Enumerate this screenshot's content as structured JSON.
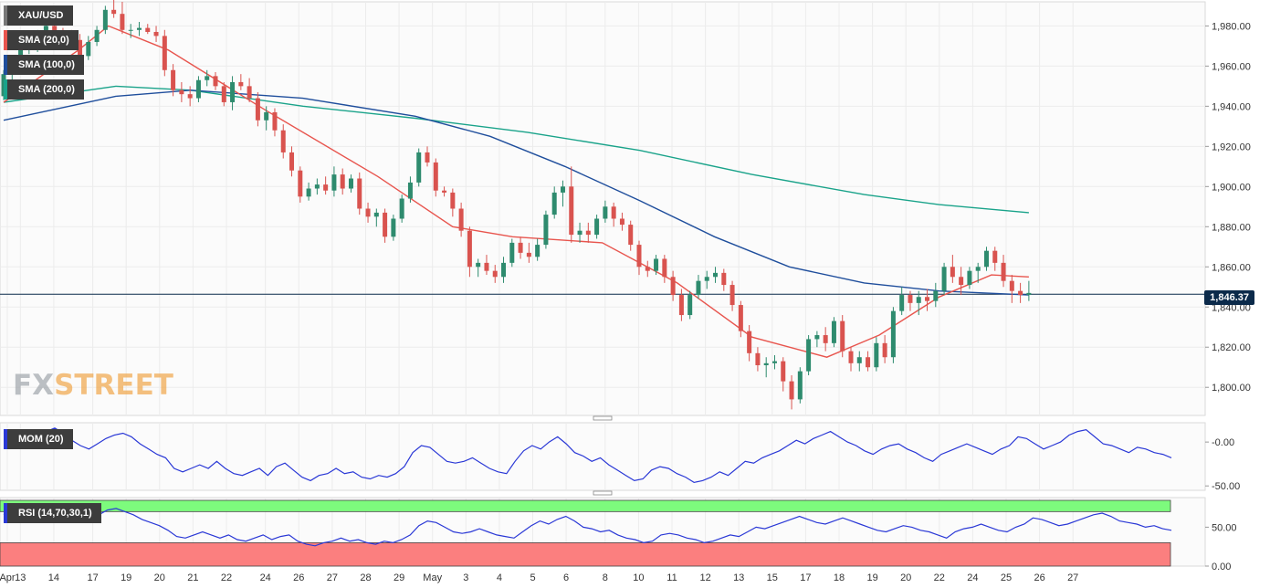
{
  "instrument": "XAU/USD",
  "legend": {
    "sma20": "SMA (20,0)",
    "sma100": "SMA (100,0)",
    "sma200": "SMA (200,0)",
    "mom": "MOM (20)",
    "rsi": "RSI (14,70,30,1)"
  },
  "logo": {
    "part1": "FX",
    "part2": "STREET"
  },
  "colors": {
    "up": "#2e8b6e",
    "down": "#d9534f",
    "sma20": "#e8554e",
    "sma100": "#1f4e9c",
    "sma200": "#1aa38a",
    "mom": "#2a38d6",
    "rsi": "#2a38d6",
    "overbought": "#7dfb7d",
    "oversold": "#fb7f7f",
    "price_line": "#0b2a4a"
  },
  "chart_data": {
    "type": "candlestick",
    "title": "XAU/USD",
    "current_price": 1846.37,
    "current_price_label": "1,846.37",
    "price_axis": {
      "range": [
        1786,
        1992
      ],
      "ticks": [
        1800,
        1820,
        1840,
        1860,
        1880,
        1900,
        1920,
        1940,
        1960,
        1980
      ],
      "tick_labels": [
        "1,800.00",
        "1,820.00",
        "1,840.00",
        "1,860.00",
        "1,880.00",
        "1,900.00",
        "1,920.00",
        "1,940.00",
        "1,960.00",
        "1,980.00"
      ]
    },
    "x_axis": {
      "labels": [
        "Apr",
        "13",
        "14",
        "17",
        "19",
        "20",
        "21",
        "22",
        "24",
        "26",
        "27",
        "28",
        "29",
        "May",
        "3",
        "4",
        "5",
        "6",
        "8",
        "10",
        "11",
        "12",
        "13",
        "15",
        "17",
        "18",
        "19",
        "20",
        "22",
        "24",
        "25",
        "26",
        "27"
      ],
      "label_index": [
        -1,
        3,
        9,
        16,
        22,
        28,
        34,
        40,
        47,
        53,
        59,
        65,
        71,
        77,
        83,
        89,
        95,
        101,
        108,
        114,
        120,
        126,
        132,
        138,
        144,
        150,
        156,
        162,
        168,
        174,
        180,
        186,
        192
      ]
    },
    "candles_ohlc": [
      [
        1945,
        1958,
        1943,
        1956
      ],
      [
        1956,
        1965,
        1952,
        1962
      ],
      [
        1962,
        1971,
        1960,
        1968
      ],
      [
        1968,
        1974,
        1966,
        1970
      ],
      [
        1970,
        1978,
        1967,
        1975
      ],
      [
        1975,
        1982,
        1972,
        1980
      ],
      [
        1980,
        1983,
        1975,
        1977
      ],
      [
        1977,
        1979,
        1972,
        1975
      ],
      [
        1975,
        1978,
        1970,
        1973
      ],
      [
        1973,
        1976,
        1962,
        1965
      ],
      [
        1965,
        1975,
        1963,
        1972
      ],
      [
        1972,
        1980,
        1970,
        1978
      ],
      [
        1978,
        1990,
        1976,
        1988
      ],
      [
        1988,
        1993,
        1984,
        1986
      ],
      [
        1986,
        1992,
        1976,
        1978
      ],
      [
        1978,
        1981,
        1974,
        1978
      ],
      [
        1978,
        1982,
        1975,
        1979
      ],
      [
        1979,
        1981,
        1976,
        1977
      ],
      [
        1977,
        1980,
        1972,
        1975
      ],
      [
        1975,
        1978,
        1955,
        1958
      ],
      [
        1958,
        1961,
        1945,
        1948
      ],
      [
        1948,
        1952,
        1942,
        1946
      ],
      [
        1946,
        1950,
        1940,
        1944
      ],
      [
        1944,
        1955,
        1942,
        1953
      ],
      [
        1953,
        1958,
        1950,
        1955
      ],
      [
        1955,
        1957,
        1948,
        1950
      ],
      [
        1950,
        1952,
        1940,
        1942
      ],
      [
        1942,
        1955,
        1938,
        1952
      ],
      [
        1952,
        1956,
        1948,
        1950
      ],
      [
        1950,
        1954,
        1942,
        1944
      ],
      [
        1944,
        1947,
        1930,
        1933
      ],
      [
        1933,
        1940,
        1928,
        1937
      ],
      [
        1937,
        1939,
        1925,
        1928
      ],
      [
        1928,
        1931,
        1914,
        1917
      ],
      [
        1917,
        1920,
        1905,
        1908
      ],
      [
        1908,
        1910,
        1892,
        1895
      ],
      [
        1895,
        1902,
        1893,
        1899
      ],
      [
        1899,
        1904,
        1896,
        1901
      ],
      [
        1901,
        1905,
        1896,
        1898
      ],
      [
        1898,
        1910,
        1895,
        1906
      ],
      [
        1906,
        1909,
        1896,
        1899
      ],
      [
        1899,
        1906,
        1897,
        1904
      ],
      [
        1904,
        1907,
        1886,
        1889
      ],
      [
        1889,
        1892,
        1882,
        1885
      ],
      [
        1885,
        1889,
        1880,
        1887
      ],
      [
        1887,
        1889,
        1872,
        1875
      ],
      [
        1875,
        1886,
        1873,
        1884
      ],
      [
        1884,
        1896,
        1882,
        1894
      ],
      [
        1894,
        1905,
        1892,
        1902
      ],
      [
        1902,
        1919,
        1900,
        1917
      ],
      [
        1917,
        1920,
        1910,
        1912
      ],
      [
        1912,
        1914,
        1895,
        1898
      ],
      [
        1898,
        1900,
        1895,
        1897
      ],
      [
        1897,
        1899,
        1885,
        1889
      ],
      [
        1889,
        1892,
        1875,
        1878
      ],
      [
        1878,
        1880,
        1855,
        1860
      ],
      [
        1860,
        1864,
        1855,
        1862
      ],
      [
        1862,
        1866,
        1856,
        1858
      ],
      [
        1858,
        1861,
        1852,
        1855
      ],
      [
        1855,
        1865,
        1852,
        1862
      ],
      [
        1862,
        1874,
        1860,
        1872
      ],
      [
        1872,
        1875,
        1864,
        1867
      ],
      [
        1867,
        1872,
        1862,
        1865
      ],
      [
        1865,
        1874,
        1863,
        1871
      ],
      [
        1871,
        1888,
        1869,
        1886
      ],
      [
        1886,
        1900,
        1884,
        1897
      ],
      [
        1897,
        1903,
        1890,
        1900
      ],
      [
        1900,
        1910,
        1872,
        1876
      ],
      [
        1876,
        1882,
        1872,
        1878
      ],
      [
        1878,
        1882,
        1872,
        1876
      ],
      [
        1876,
        1886,
        1874,
        1884
      ],
      [
        1884,
        1893,
        1882,
        1890
      ],
      [
        1890,
        1892,
        1880,
        1884
      ],
      [
        1884,
        1887,
        1878,
        1881
      ],
      [
        1881,
        1883,
        1868,
        1871
      ],
      [
        1871,
        1873,
        1856,
        1860
      ],
      [
        1860,
        1863,
        1855,
        1858
      ],
      [
        1858,
        1866,
        1856,
        1864
      ],
      [
        1864,
        1866,
        1852,
        1855
      ],
      [
        1855,
        1858,
        1843,
        1846
      ],
      [
        1846,
        1849,
        1833,
        1836
      ],
      [
        1836,
        1848,
        1834,
        1846
      ],
      [
        1846,
        1856,
        1844,
        1853
      ],
      [
        1853,
        1858,
        1849,
        1855
      ],
      [
        1855,
        1860,
        1852,
        1857
      ],
      [
        1857,
        1859,
        1848,
        1851
      ],
      [
        1851,
        1853,
        1838,
        1841
      ],
      [
        1841,
        1843,
        1825,
        1828
      ],
      [
        1828,
        1831,
        1813,
        1817
      ],
      [
        1817,
        1820,
        1808,
        1811
      ],
      [
        1811,
        1815,
        1805,
        1812
      ],
      [
        1812,
        1816,
        1809,
        1813
      ],
      [
        1813,
        1815,
        1798,
        1803
      ],
      [
        1803,
        1806,
        1789,
        1794
      ],
      [
        1794,
        1810,
        1792,
        1808
      ],
      [
        1808,
        1826,
        1806,
        1824
      ],
      [
        1824,
        1828,
        1820,
        1826
      ],
      [
        1826,
        1830,
        1818,
        1822
      ],
      [
        1822,
        1835,
        1820,
        1833
      ],
      [
        1833,
        1836,
        1815,
        1818
      ],
      [
        1818,
        1820,
        1808,
        1812
      ],
      [
        1812,
        1818,
        1808,
        1815
      ],
      [
        1815,
        1818,
        1808,
        1810
      ],
      [
        1810,
        1825,
        1808,
        1822
      ],
      [
        1822,
        1826,
        1812,
        1815
      ],
      [
        1815,
        1840,
        1812,
        1838
      ],
      [
        1838,
        1850,
        1836,
        1846
      ],
      [
        1846,
        1848,
        1838,
        1842
      ],
      [
        1842,
        1848,
        1836,
        1845
      ],
      [
        1845,
        1849,
        1838,
        1843
      ],
      [
        1843,
        1852,
        1840,
        1848
      ],
      [
        1848,
        1862,
        1846,
        1860
      ],
      [
        1860,
        1866,
        1852,
        1855
      ],
      [
        1855,
        1860,
        1846,
        1851
      ],
      [
        1851,
        1860,
        1849,
        1858
      ],
      [
        1858,
        1862,
        1852,
        1860
      ],
      [
        1860,
        1870,
        1858,
        1868
      ],
      [
        1868,
        1870,
        1858,
        1862
      ],
      [
        1862,
        1866,
        1850,
        1853
      ],
      [
        1853,
        1856,
        1842,
        1848
      ],
      [
        1848,
        1852,
        1842,
        1846
      ],
      [
        1846,
        1853,
        1843,
        1847
      ]
    ],
    "candle_spacing_bars": 1.55,
    "sma20": [
      [
        0,
        1942
      ],
      [
        10,
        1968
      ],
      [
        14,
        1980
      ],
      [
        22,
        1968
      ],
      [
        35,
        1938
      ],
      [
        50,
        1905
      ],
      [
        60,
        1880
      ],
      [
        68,
        1875
      ],
      [
        80,
        1872
      ],
      [
        90,
        1852
      ],
      [
        100,
        1825
      ],
      [
        110,
        1815
      ],
      [
        117,
        1826
      ],
      [
        125,
        1845
      ],
      [
        132,
        1856
      ],
      [
        137,
        1855
      ]
    ],
    "sma100": [
      [
        0,
        1933
      ],
      [
        15,
        1945
      ],
      [
        25,
        1948
      ],
      [
        40,
        1944
      ],
      [
        55,
        1935
      ],
      [
        65,
        1925
      ],
      [
        75,
        1910
      ],
      [
        85,
        1893
      ],
      [
        95,
        1875
      ],
      [
        105,
        1860
      ],
      [
        115,
        1852
      ],
      [
        125,
        1848
      ],
      [
        137,
        1846
      ]
    ],
    "sma200": [
      [
        0,
        1942
      ],
      [
        15,
        1950
      ],
      [
        25,
        1948
      ],
      [
        40,
        1940
      ],
      [
        55,
        1934
      ],
      [
        70,
        1927
      ],
      [
        85,
        1918
      ],
      [
        100,
        1906
      ],
      [
        115,
        1896
      ],
      [
        125,
        1891
      ],
      [
        137,
        1887
      ]
    ],
    "momentum": {
      "label": "MOM (20)",
      "range": [
        -55,
        22
      ],
      "ticks": [
        0,
        -50
      ],
      "tick_labels": [
        "-0.00",
        "-50.00"
      ],
      "values": [
        10,
        12,
        14,
        10,
        8,
        12,
        16,
        10,
        2,
        -4,
        -8,
        -2,
        4,
        8,
        10,
        6,
        -2,
        -8,
        -14,
        -18,
        -30,
        -34,
        -30,
        -26,
        -30,
        -22,
        -30,
        -36,
        -38,
        -34,
        -30,
        -38,
        -28,
        -24,
        -32,
        -40,
        -44,
        -38,
        -36,
        -30,
        -36,
        -34,
        -40,
        -42,
        -38,
        -40,
        -36,
        -28,
        -12,
        -4,
        -6,
        -14,
        -22,
        -24,
        -22,
        -18,
        -24,
        -30,
        -34,
        -36,
        -22,
        -10,
        -4,
        -8,
        0,
        6,
        -2,
        -12,
        -16,
        -22,
        -18,
        -26,
        -32,
        -38,
        -44,
        -42,
        -32,
        -28,
        -30,
        -36,
        -40,
        -46,
        -44,
        -40,
        -34,
        -38,
        -30,
        -22,
        -24,
        -18,
        -14,
        -10,
        -4,
        2,
        -2,
        4,
        8,
        12,
        6,
        0,
        -4,
        -10,
        -14,
        -8,
        -4,
        -2,
        -8,
        -12,
        -18,
        -22,
        -14,
        -10,
        -6,
        -2,
        -6,
        -10,
        -14,
        -8,
        -4,
        6,
        4,
        -2,
        -8,
        -4,
        0,
        8,
        12,
        14,
        6,
        -2,
        -4,
        -8,
        -12,
        -6,
        -8,
        -12,
        -14,
        -18
      ]
    },
    "rsi": {
      "label": "RSI (14,70,30,1)",
      "range": [
        0,
        88
      ],
      "ticks": [
        50,
        0
      ],
      "tick_labels": [
        "50.00",
        "0.00"
      ],
      "overbought": 70,
      "oversold": 30,
      "values": [
        66,
        72,
        74,
        70,
        66,
        70,
        74,
        68,
        60,
        56,
        60,
        66,
        72,
        74,
        70,
        66,
        60,
        56,
        52,
        46,
        38,
        36,
        40,
        44,
        40,
        36,
        40,
        34,
        32,
        36,
        40,
        34,
        38,
        40,
        32,
        28,
        26,
        30,
        32,
        36,
        32,
        34,
        30,
        28,
        32,
        30,
        34,
        40,
        52,
        58,
        56,
        50,
        44,
        42,
        44,
        48,
        44,
        40,
        38,
        36,
        44,
        52,
        58,
        54,
        60,
        64,
        58,
        50,
        48,
        44,
        46,
        40,
        36,
        34,
        30,
        32,
        40,
        42,
        40,
        36,
        34,
        30,
        32,
        36,
        40,
        38,
        44,
        50,
        48,
        52,
        56,
        60,
        64,
        60,
        56,
        54,
        58,
        62,
        58,
        54,
        50,
        46,
        44,
        48,
        52,
        50,
        46,
        44,
        40,
        36,
        44,
        48,
        50,
        54,
        50,
        46,
        44,
        50,
        54,
        62,
        60,
        56,
        52,
        54,
        58,
        62,
        66,
        68,
        64,
        58,
        56,
        54,
        50,
        52,
        48,
        46
      ]
    }
  }
}
